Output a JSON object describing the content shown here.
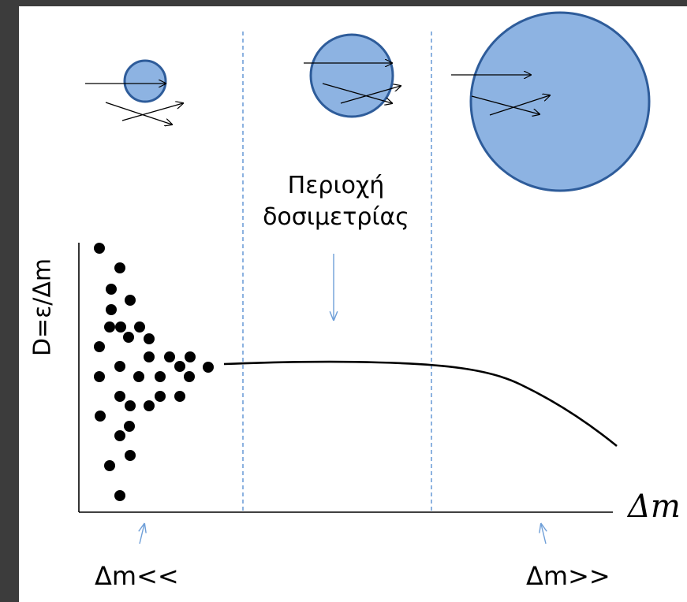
{
  "diagram": {
    "region_label_line1": "Περιοχή",
    "region_label_line2": "δοσιμετρίας",
    "y_axis_label": "D=ε/Δm",
    "x_axis_label": "Δm",
    "left_label": "Δm<<",
    "right_label": "Δm>>"
  },
  "colors": {
    "sphere_fill": "#8db3e2",
    "sphere_stroke": "#2e5c9a",
    "dashed_line": "#6f9fd8",
    "pointer_arrow": "#6f9fd8",
    "ink": "#000000"
  }
}
